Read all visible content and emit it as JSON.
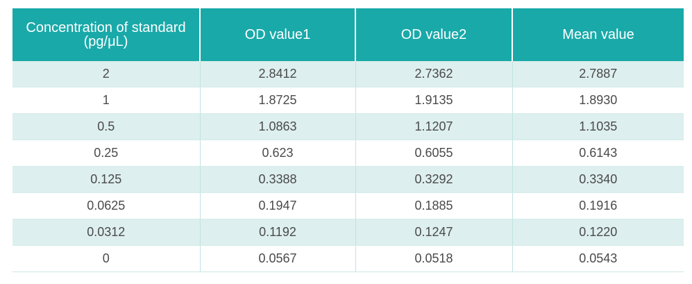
{
  "table": {
    "headers": [
      [
        "Concentration of standard",
        "(pg/μL)"
      ],
      [
        "OD value1"
      ],
      [
        "OD value2"
      ],
      [
        "Mean value"
      ]
    ],
    "rows": [
      [
        "2",
        "2.8412",
        "2.7362",
        "2.7887"
      ],
      [
        "1",
        "1.8725",
        "1.9135",
        "1.8930"
      ],
      [
        "0.5",
        "1.0863",
        "1.1207",
        "1.1035"
      ],
      [
        "0.25",
        "0.623",
        "0.6055",
        "0.6143"
      ],
      [
        "0.125",
        "0.3388",
        "0.3292",
        "0.3340"
      ],
      [
        "0.0625",
        "0.1947",
        "0.1885",
        "0.1916"
      ],
      [
        "0.0312",
        "0.1192",
        "0.1247",
        "0.1220"
      ],
      [
        "0",
        "0.0567",
        "0.0518",
        "0.0543"
      ]
    ],
    "colors": {
      "header_bg": "#1aa9a9",
      "row_stripe": "#ddefee",
      "text": "#4a4a4a"
    }
  }
}
